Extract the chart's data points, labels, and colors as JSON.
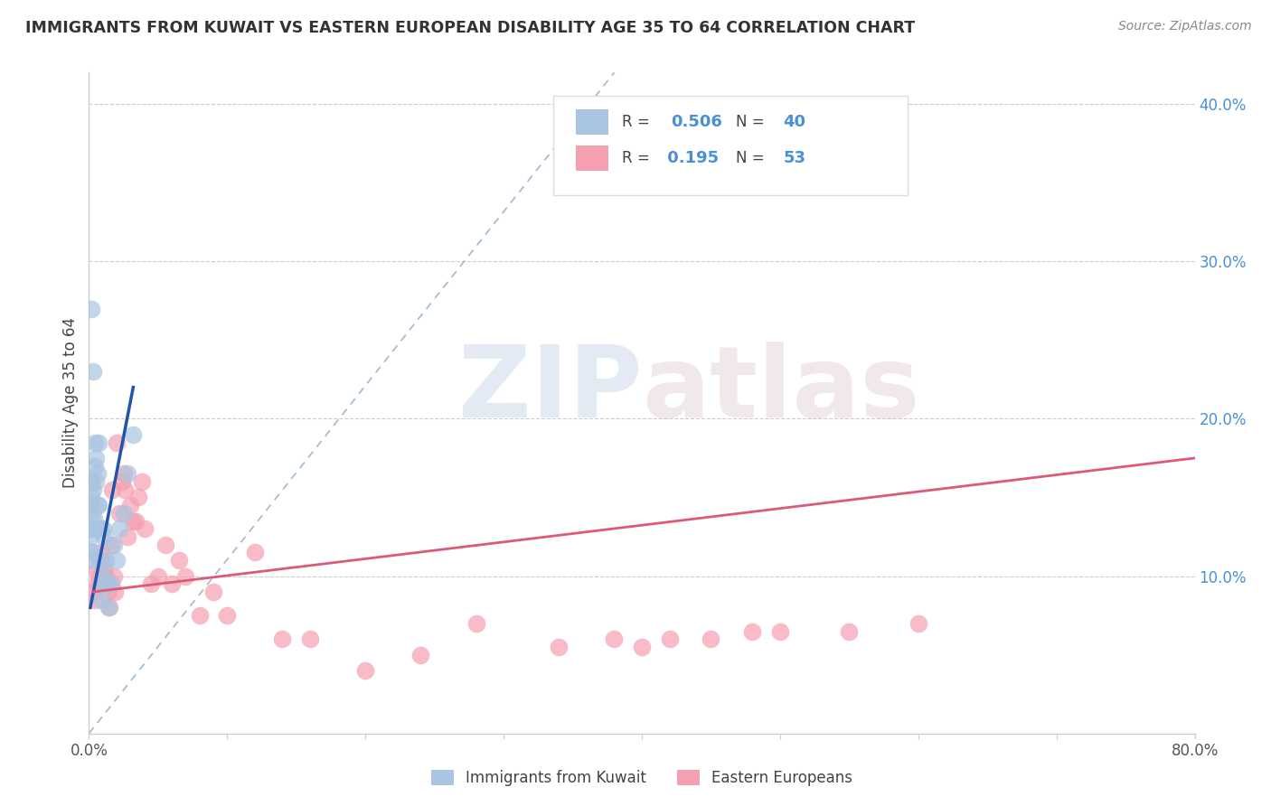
{
  "title": "IMMIGRANTS FROM KUWAIT VS EASTERN EUROPEAN DISABILITY AGE 35 TO 64 CORRELATION CHART",
  "source": "Source: ZipAtlas.com",
  "ylabel": "Disability Age 35 to 64",
  "xlim": [
    0.0,
    0.8
  ],
  "ylim": [
    0.0,
    0.42
  ],
  "legend_labels": [
    "Immigrants from Kuwait",
    "Eastern Europeans"
  ],
  "R_kuwait": 0.506,
  "N_kuwait": 40,
  "R_eastern": 0.195,
  "N_eastern": 53,
  "kuwait_color": "#a8c4e0",
  "eastern_color": "#f4a0b0",
  "kuwait_line_color": "#2255aa",
  "eastern_line_color": "#e05878",
  "dashed_line_color": "#a0b8d0",
  "watermark_zip": "ZIP",
  "watermark_atlas": "atlas",
  "kuwait_x": [
    0.001,
    0.001,
    0.001,
    0.001,
    0.002,
    0.002,
    0.002,
    0.002,
    0.002,
    0.003,
    0.003,
    0.003,
    0.003,
    0.004,
    0.004,
    0.004,
    0.005,
    0.005,
    0.005,
    0.006,
    0.006,
    0.007,
    0.007,
    0.008,
    0.008,
    0.009,
    0.009,
    0.01,
    0.01,
    0.011,
    0.012,
    0.013,
    0.014,
    0.016,
    0.018,
    0.02,
    0.022,
    0.025,
    0.028,
    0.032
  ],
  "kuwait_y": [
    0.145,
    0.13,
    0.125,
    0.115,
    0.27,
    0.16,
    0.15,
    0.13,
    0.11,
    0.23,
    0.155,
    0.14,
    0.115,
    0.185,
    0.17,
    0.135,
    0.175,
    0.16,
    0.13,
    0.165,
    0.145,
    0.185,
    0.145,
    0.13,
    0.11,
    0.095,
    0.085,
    0.13,
    0.1,
    0.125,
    0.11,
    0.095,
    0.08,
    0.095,
    0.12,
    0.11,
    0.13,
    0.14,
    0.165,
    0.19
  ],
  "eastern_x": [
    0.003,
    0.004,
    0.005,
    0.006,
    0.007,
    0.008,
    0.009,
    0.01,
    0.011,
    0.012,
    0.013,
    0.014,
    0.015,
    0.016,
    0.017,
    0.018,
    0.019,
    0.02,
    0.022,
    0.024,
    0.025,
    0.026,
    0.028,
    0.03,
    0.032,
    0.034,
    0.036,
    0.038,
    0.04,
    0.045,
    0.05,
    0.055,
    0.06,
    0.065,
    0.07,
    0.08,
    0.09,
    0.1,
    0.12,
    0.14,
    0.16,
    0.2,
    0.24,
    0.28,
    0.34,
    0.38,
    0.4,
    0.42,
    0.45,
    0.48,
    0.5,
    0.55,
    0.6
  ],
  "eastern_y": [
    0.09,
    0.085,
    0.105,
    0.095,
    0.1,
    0.095,
    0.115,
    0.11,
    0.105,
    0.1,
    0.095,
    0.09,
    0.08,
    0.12,
    0.155,
    0.1,
    0.09,
    0.185,
    0.14,
    0.16,
    0.165,
    0.155,
    0.125,
    0.145,
    0.135,
    0.135,
    0.15,
    0.16,
    0.13,
    0.095,
    0.1,
    0.12,
    0.095,
    0.11,
    0.1,
    0.075,
    0.09,
    0.075,
    0.115,
    0.06,
    0.06,
    0.04,
    0.05,
    0.07,
    0.055,
    0.06,
    0.055,
    0.06,
    0.06,
    0.065,
    0.065,
    0.065,
    0.07
  ],
  "kuwait_line_x": [
    0.001,
    0.032
  ],
  "kuwait_line_y": [
    0.08,
    0.22
  ],
  "eastern_line_x": [
    0.003,
    0.8
  ],
  "eastern_line_y": [
    0.09,
    0.175
  ]
}
